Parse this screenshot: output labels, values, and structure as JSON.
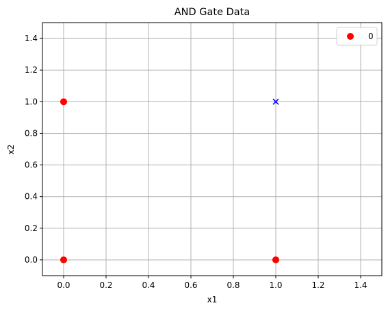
{
  "chart_data": {
    "type": "scatter",
    "title": "AND Gate Data",
    "xlabel": "x1",
    "ylabel": "x2",
    "xlim": [
      -0.1,
      1.5
    ],
    "ylim": [
      -0.1,
      1.5
    ],
    "xticks": [
      0.0,
      0.2,
      0.4,
      0.6,
      0.8,
      1.0,
      1.2,
      1.4
    ],
    "yticks": [
      0.0,
      0.2,
      0.4,
      0.6,
      0.8,
      1.0,
      1.2,
      1.4
    ],
    "xtick_labels": [
      "0.0",
      "0.2",
      "0.4",
      "0.6",
      "0.8",
      "1.0",
      "1.2",
      "1.4"
    ],
    "ytick_labels": [
      "0.0",
      "0.2",
      "0.4",
      "0.6",
      "0.8",
      "1.0",
      "1.2",
      "1.4"
    ],
    "grid": true,
    "legend_position": "top-right",
    "series": [
      {
        "name": "0",
        "marker": "circle",
        "color": "#ff0000",
        "points": [
          [
            0,
            0
          ],
          [
            0,
            1
          ],
          [
            1,
            0
          ]
        ]
      },
      {
        "marker": "x",
        "color": "#0000ff",
        "points": [
          [
            1,
            1
          ]
        ]
      }
    ],
    "legend": [
      {
        "label": "0",
        "marker": "circle",
        "color": "#ff0000"
      }
    ],
    "grid_color": "#b0b0b0"
  }
}
